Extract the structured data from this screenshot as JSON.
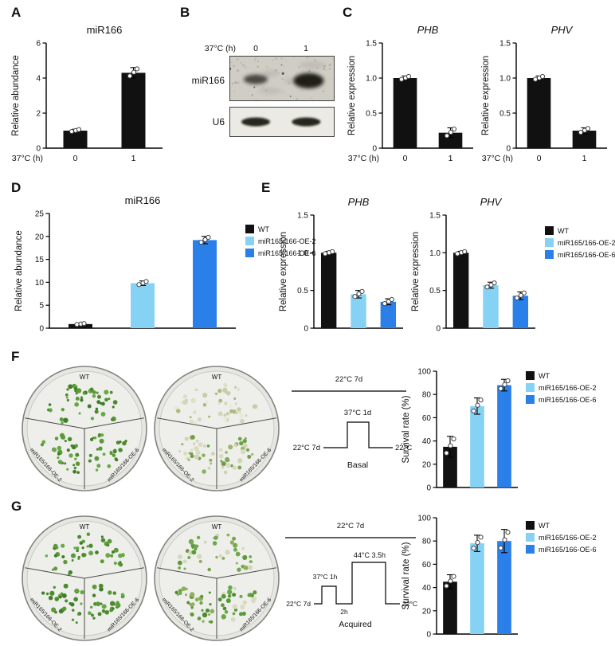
{
  "colors": {
    "black": "#111111",
    "light_blue": "#86d2f4",
    "blue": "#2a7fe8"
  },
  "panel_labels": {
    "A": "A",
    "B": "B",
    "C": "C",
    "D": "D",
    "E": "E",
    "F": "F",
    "G": "G"
  },
  "legend": {
    "items": [
      {
        "label": "WT",
        "color": "#111111"
      },
      {
        "label": "miR165/166-OE-2",
        "color": "#86d2f4"
      },
      {
        "label": "miR165/166-OE-6",
        "color": "#2a7fe8"
      }
    ]
  },
  "chart_data": [
    {
      "id": "A-miR166",
      "type": "bar",
      "title": "miR166",
      "title_italic": false,
      "ylabel": "Relative abundance",
      "xlabel": "37°C (h)",
      "categories": [
        "0",
        "1"
      ],
      "values": [
        1.0,
        4.3
      ],
      "errors": [
        0.08,
        0.3
      ],
      "ylim": [
        0,
        6
      ],
      "yticks": [
        "0",
        "2",
        "4",
        "6"
      ],
      "colors": [
        "#111111",
        "#111111"
      ],
      "show_cats": true
    },
    {
      "id": "C-PHB",
      "type": "bar",
      "title": "PHB",
      "title_italic": true,
      "ylabel": "Relative expression",
      "xlabel": "37°C (h)",
      "categories": [
        "0",
        "1"
      ],
      "values": [
        1.0,
        0.22
      ],
      "errors": [
        0.03,
        0.07
      ],
      "ylim": [
        0,
        1.5
      ],
      "yticks": [
        "0",
        "0.5",
        "1.0",
        "1.5"
      ],
      "colors": [
        "#111111",
        "#111111"
      ],
      "show_cats": true
    },
    {
      "id": "C-PHV",
      "type": "bar",
      "title": "PHV",
      "title_italic": true,
      "ylabel": "Relative expression",
      "xlabel": "37°C (h)",
      "categories": [
        "0",
        "1"
      ],
      "values": [
        1.0,
        0.25
      ],
      "errors": [
        0.03,
        0.04
      ],
      "ylim": [
        0,
        1.5
      ],
      "yticks": [
        "0",
        "0.5",
        "1.0",
        "1.5"
      ],
      "colors": [
        "#111111",
        "#111111"
      ],
      "show_cats": true
    },
    {
      "id": "D-miR166",
      "type": "bar",
      "title": "miR166",
      "title_italic": false,
      "ylabel": "Relative abundance",
      "xlabel": "",
      "categories": [
        "WT",
        "miR165/166-OE-2",
        "miR165/166-OE-6"
      ],
      "values": [
        0.9,
        9.8,
        19.2
      ],
      "errors": [
        0.15,
        0.5,
        0.8
      ],
      "ylim": [
        0,
        25
      ],
      "yticks": [
        "0",
        "5",
        "10",
        "15",
        "20",
        "25"
      ],
      "colors": [
        "#111111",
        "#86d2f4",
        "#2a7fe8"
      ],
      "show_cats": false
    },
    {
      "id": "E-PHB",
      "type": "bar",
      "title": "PHB",
      "title_italic": true,
      "ylabel": "Relative expression",
      "xlabel": "",
      "categories": [
        "WT",
        "miR165/166-OE-2",
        "miR165/166-OE-6"
      ],
      "values": [
        1.0,
        0.45,
        0.35
      ],
      "errors": [
        0.02,
        0.05,
        0.04
      ],
      "ylim": [
        0,
        1.5
      ],
      "yticks": [
        "0",
        "0.5",
        "1.0",
        "1.5"
      ],
      "colors": [
        "#111111",
        "#86d2f4",
        "#2a7fe8"
      ],
      "show_cats": false
    },
    {
      "id": "E-PHV",
      "type": "bar",
      "title": "PHV",
      "title_italic": true,
      "ylabel": "Relative expression",
      "xlabel": "",
      "categories": [
        "WT",
        "miR165/166-OE-2",
        "miR165/166-OE-6"
      ],
      "values": [
        1.0,
        0.57,
        0.43
      ],
      "errors": [
        0.02,
        0.04,
        0.05
      ],
      "ylim": [
        0,
        1.5
      ],
      "yticks": [
        "0",
        "0.5",
        "1.0",
        "1.5"
      ],
      "colors": [
        "#111111",
        "#86d2f4",
        "#2a7fe8"
      ],
      "show_cats": false
    },
    {
      "id": "F-survival",
      "type": "bar",
      "title": "",
      "title_italic": false,
      "ylabel": "Survival rate (%)",
      "xlabel": "",
      "categories": [
        "WT",
        "miR165/166-OE-2",
        "miR165/166-OE-6"
      ],
      "values": [
        35,
        70,
        88
      ],
      "errors": [
        9,
        7,
        5
      ],
      "ylim": [
        0,
        100
      ],
      "yticks": [
        "0",
        "20",
        "40",
        "60",
        "80",
        "100"
      ],
      "colors": [
        "#111111",
        "#86d2f4",
        "#2a7fe8"
      ],
      "show_cats": false
    },
    {
      "id": "G-survival",
      "type": "bar",
      "title": "",
      "title_italic": false,
      "ylabel": "Survival rate (%)",
      "xlabel": "",
      "categories": [
        "WT",
        "miR165/166-OE-2",
        "miR165/166-OE-6"
      ],
      "values": [
        45,
        78,
        80
      ],
      "errors": [
        6,
        7,
        10
      ],
      "ylim": [
        0,
        100
      ],
      "yticks": [
        "0",
        "20",
        "40",
        "60",
        "80",
        "100"
      ],
      "colors": [
        "#111111",
        "#86d2f4",
        "#2a7fe8"
      ],
      "show_cats": false
    }
  ],
  "panels": {
    "B": {
      "header": "37°C (h)",
      "lanes": [
        "0",
        "1"
      ],
      "rows": [
        {
          "label": "miR166"
        },
        {
          "label": "U6"
        }
      ]
    },
    "F": {
      "dish_labels": {
        "top": "WT",
        "left": "miR165/166-OE-2",
        "right": "miR165/166-OE-6"
      },
      "dishes": [
        {
          "seed": 11,
          "sector_colors": {
            "top": [
              "#4c8c2f",
              "#5a9a38",
              "#3f7d27",
              "#68a848"
            ],
            "left": [
              "#4c8c2f",
              "#5a9a38",
              "#3f7d27",
              "#68a848"
            ],
            "right": [
              "#4c8c2f",
              "#5a9a38",
              "#3f7d27",
              "#68a848"
            ]
          }
        },
        {
          "seed": 23,
          "sector_colors": {
            "top": [
              "#dcdfc8",
              "#d2d6ba",
              "#e7e9d9",
              "#c6cda8",
              "#aabc7e"
            ],
            "left": [
              "#8fae5e",
              "#d8dbc0",
              "#a5bd74",
              "#cfd4b2",
              "#6fa04a"
            ],
            "right": [
              "#7fa854",
              "#9db46f",
              "#d8dbc0",
              "#6fa04a",
              "#cfd4b2"
            ]
          }
        }
      ],
      "schematic": {
        "top": "22°C 7d",
        "pulse": "37°C 1d",
        "pre": "22°C 7d",
        "post": "22°C",
        "name": "Basal"
      }
    },
    "G": {
      "dish_labels": {
        "top": "WT",
        "left": "miR165/166-OE-2",
        "right": "miR165/166-OE-6"
      },
      "dishes": [
        {
          "seed": 31,
          "sector_colors": {
            "top": [
              "#4c8c2f",
              "#5a9a38",
              "#3f7d27",
              "#68a848"
            ],
            "left": [
              "#4c8c2f",
              "#5a9a38",
              "#3f7d27",
              "#68a848"
            ],
            "right": [
              "#4c8c2f",
              "#5a9a38",
              "#3f7d27",
              "#68a848"
            ]
          }
        },
        {
          "seed": 41,
          "sector_colors": {
            "top": [
              "#6fa84c",
              "#5a9a38",
              "#8fae5e",
              "#d2d6ba"
            ],
            "left": [
              "#4c8c2f",
              "#5a9a38",
              "#68a848",
              "#8fae5e"
            ],
            "right": [
              "#4c8c2f",
              "#5a9a38",
              "#68a848",
              "#d8dbc0"
            ]
          }
        }
      ],
      "schematic": {
        "top": "22°C 7d",
        "pulse1": "37°C 1h",
        "gap": "2h",
        "pulse2": "44°C 3.5h",
        "pre": "22°C 7d",
        "post": "22°C",
        "name": "Acquired"
      }
    }
  }
}
